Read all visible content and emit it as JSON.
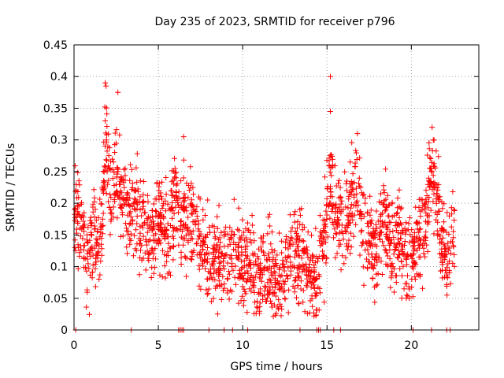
{
  "chart_data": {
    "type": "scatter",
    "title": "Day 235 of 2023, SRMTID for receiver p796",
    "xlabel": "GPS time / hours",
    "ylabel": "SRMTID / TECUs",
    "xlim": [
      0,
      24
    ],
    "ylim": [
      0,
      0.45
    ],
    "x_ticks": [
      0,
      5,
      10,
      15,
      20
    ],
    "x_tick_labels": [
      "0",
      "5",
      "10",
      "15",
      "20"
    ],
    "y_ticks": [
      0,
      0.05,
      0.1,
      0.15,
      0.2,
      0.25,
      0.3,
      0.35,
      0.4,
      0.45
    ],
    "y_tick_labels": [
      "0",
      "0.05",
      "0.1",
      "0.15",
      "0.2",
      "0.25",
      "0.3",
      "0.35",
      "0.4",
      "0.45"
    ],
    "grid": true,
    "marker": "+",
    "color": "#ff0000",
    "zero_points_x": [
      0.1,
      3.4,
      6.2,
      6.3,
      6.4,
      6.5,
      8.0,
      8.9,
      9.4,
      10.3,
      13.4,
      14.4,
      14.5,
      14.6,
      15.4,
      15.8,
      20.1,
      21.2,
      22.1,
      22.3
    ],
    "anchors": [
      [
        0.1,
        0.2
      ],
      [
        0.4,
        0.16
      ],
      [
        0.8,
        0.1
      ],
      [
        1.2,
        0.15
      ],
      [
        1.6,
        0.14
      ],
      [
        1.9,
        0.3
      ],
      [
        2.2,
        0.2
      ],
      [
        2.5,
        0.25
      ],
      [
        2.8,
        0.22
      ],
      [
        3.2,
        0.18
      ],
      [
        3.6,
        0.2
      ],
      [
        4.0,
        0.17
      ],
      [
        4.4,
        0.14
      ],
      [
        4.8,
        0.15
      ],
      [
        5.2,
        0.18
      ],
      [
        5.6,
        0.14
      ],
      [
        6.0,
        0.22
      ],
      [
        6.4,
        0.16
      ],
      [
        6.8,
        0.18
      ],
      [
        7.2,
        0.16
      ],
      [
        7.6,
        0.12
      ],
      [
        8.0,
        0.11
      ],
      [
        8.4,
        0.12
      ],
      [
        8.8,
        0.12
      ],
      [
        9.2,
        0.11
      ],
      [
        9.6,
        0.12
      ],
      [
        10.0,
        0.1
      ],
      [
        10.4,
        0.11
      ],
      [
        10.8,
        0.08
      ],
      [
        11.2,
        0.09
      ],
      [
        11.6,
        0.09
      ],
      [
        12.0,
        0.08
      ],
      [
        12.4,
        0.1
      ],
      [
        12.8,
        0.11
      ],
      [
        13.2,
        0.12
      ],
      [
        13.6,
        0.11
      ],
      [
        14.0,
        0.1
      ],
      [
        14.4,
        0.08
      ],
      [
        14.8,
        0.14
      ],
      [
        15.2,
        0.23
      ],
      [
        15.6,
        0.18
      ],
      [
        16.0,
        0.17
      ],
      [
        16.4,
        0.19
      ],
      [
        16.8,
        0.24
      ],
      [
        17.2,
        0.15
      ],
      [
        17.6,
        0.14
      ],
      [
        18.0,
        0.13
      ],
      [
        18.4,
        0.2
      ],
      [
        18.8,
        0.12
      ],
      [
        19.2,
        0.16
      ],
      [
        19.6,
        0.12
      ],
      [
        20.0,
        0.1
      ],
      [
        20.4,
        0.14
      ],
      [
        20.8,
        0.15
      ],
      [
        21.2,
        0.26
      ],
      [
        21.5,
        0.22
      ],
      [
        21.8,
        0.13
      ],
      [
        22.2,
        0.12
      ],
      [
        22.6,
        0.14
      ]
    ],
    "point_count_approx": 2000
  }
}
